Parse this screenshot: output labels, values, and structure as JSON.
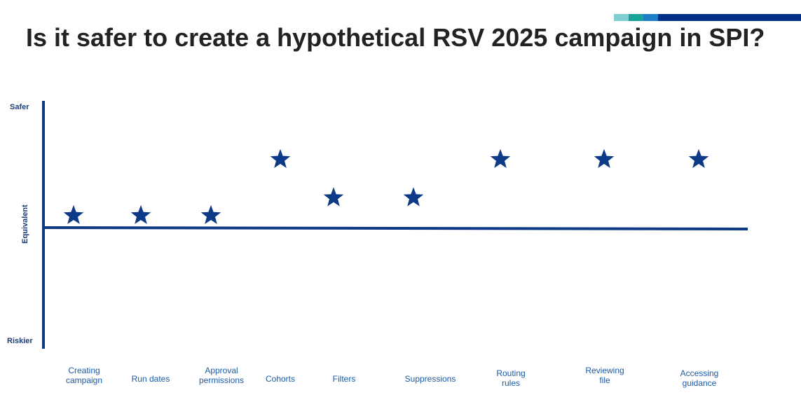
{
  "title": "Is it safer to create a hypothetical RSV 2025 campaign in SPI?",
  "colors": {
    "title": "#222222",
    "axis": "#0d3a86",
    "star": "#0d3a86",
    "y_labels": "#1c3f7a",
    "x_labels": "#1a5aa8",
    "accent_bar": [
      "#7fcfd0",
      "#1aa39a",
      "#1e7fc8",
      "#003087"
    ]
  },
  "chart_data": {
    "type": "scatter",
    "marker": "star",
    "y_tick_labels": {
      "top": "Safer",
      "middle": "Equivalent",
      "bottom": "Riskier"
    },
    "ylim": [
      -1,
      1
    ],
    "categories": [
      "Creating\ncampaign",
      "Run dates",
      "Approval\npermissions",
      "Cohorts",
      "Filters",
      "Suppressions",
      "Routing\nrules",
      "Reviewing\nfile",
      "Accessing\nguidance"
    ],
    "values": [
      0.1,
      0.1,
      0.1,
      0.54,
      0.24,
      0.24,
      0.54,
      0.54,
      0.54
    ]
  }
}
